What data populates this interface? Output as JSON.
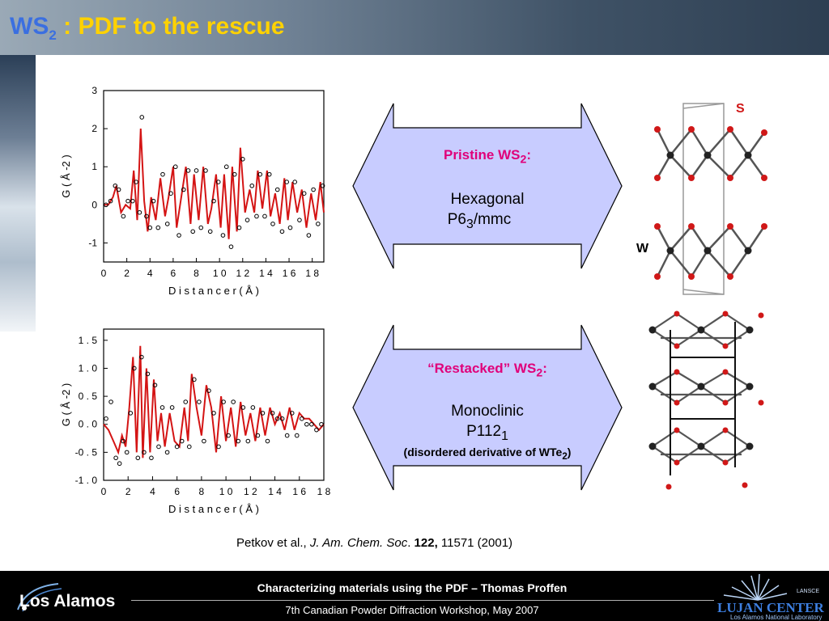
{
  "header": {
    "title_ws": "WS",
    "title_ws_sub": "2",
    "title_rest": " : PDF to the rescue"
  },
  "box_pristine": {
    "heading": "Pristine WS",
    "heading_sub": "2",
    "heading_suffix": ":",
    "line1": "Hexagonal",
    "line2_pre": "P6",
    "line2_sub": "3",
    "line2_post": "/mmc"
  },
  "box_restacked": {
    "heading": "“Restacked” WS",
    "heading_sub": "2",
    "heading_suffix": ":",
    "line1": "Monoclinic",
    "line2_pre": "P112",
    "line2_sub": "1",
    "note_pre": "(disordered derivative of WTe",
    "note_sub": "2",
    "note_post": ")"
  },
  "crystal_labels": {
    "s": "S",
    "w": "W"
  },
  "citation": {
    "authors": "Petkov et al., ",
    "journal": "J. Am. Chem. Soc",
    "dot": ". ",
    "volume": "122,",
    "rest": " 11571 (2001)"
  },
  "footer": {
    "line1": "Characterizing materials using the PDF – Thomas Proffen",
    "line2": "7th Canadian Powder Diffraction Workshop, May 2007",
    "left_logo_text": "Los Alamos",
    "right_logo_main": "LUJAN CENTER",
    "right_logo_sub": "Los Alamos National Laboratory",
    "right_logo_tag": "LANSCE"
  },
  "colors": {
    "fit_line": "#d41414",
    "data_points": "#000000",
    "arrow_fill": "#c8ccff",
    "heading_pink": "#e0007a",
    "title_yellow": "#ffd200",
    "title_blue": "#3b6fe0"
  },
  "chart_data": [
    {
      "type": "line",
      "xlabel": "D i s t a n c e   r ( Å )",
      "ylabel": "G   ( Å -2 )",
      "xlim": [
        0,
        19
      ],
      "ylim": [
        -1.5,
        3
      ],
      "xticks": [
        "0",
        "2",
        "4",
        "6",
        "8",
        "1 0",
        "1 2",
        "1 4",
        "1 6",
        "1 8"
      ],
      "yticks": [
        "-1",
        "0",
        "1",
        "2",
        "3"
      ],
      "xtick_values": [
        0,
        2,
        4,
        6,
        8,
        10,
        12,
        14,
        16,
        18
      ],
      "ytick_values": [
        -1,
        0,
        1,
        2,
        3
      ],
      "series": [
        {
          "style": "line",
          "x": [
            0,
            0.4,
            0.8,
            1.1,
            1.5,
            1.9,
            2.3,
            2.6,
            2.9,
            3.2,
            3.5,
            3.8,
            4.1,
            4.5,
            4.9,
            5.3,
            5.6,
            6.0,
            6.3,
            6.7,
            7.1,
            7.5,
            7.8,
            8.2,
            8.6,
            9.0,
            9.3,
            9.7,
            10.1,
            10.4,
            10.8,
            11.1,
            11.5,
            11.8,
            12.2,
            12.6,
            13.0,
            13.3,
            13.7,
            14.1,
            14.4,
            14.8,
            15.2,
            15.6,
            15.9,
            16.3,
            16.7,
            17.1,
            17.5,
            17.9,
            18.3,
            18.7,
            19.0
          ],
          "y": [
            0,
            0,
            0.2,
            0.5,
            -0.2,
            0,
            -0.1,
            0.9,
            -0.4,
            2.0,
            0.1,
            -0.7,
            0.2,
            -0.4,
            0.7,
            -0.3,
            0.2,
            1.0,
            -0.6,
            0.2,
            1.0,
            -0.5,
            0.8,
            -0.4,
            1.0,
            -0.5,
            -0.1,
            0.8,
            -0.6,
            0.8,
            -0.9,
            1.0,
            -0.7,
            1.5,
            -0.2,
            0.4,
            -0.2,
            0.9,
            -0.1,
            0.9,
            -0.3,
            0.3,
            -0.5,
            0.7,
            -0.4,
            0.6,
            -0.2,
            0.4,
            -0.6,
            0.3,
            -0.4,
            0.6,
            -0.2
          ]
        },
        {
          "style": "points",
          "x": [
            0.2,
            0.6,
            1.0,
            1.3,
            1.7,
            2.1,
            2.5,
            2.8,
            3.1,
            3.3,
            3.7,
            4.0,
            4.3,
            4.7,
            5.1,
            5.5,
            5.8,
            6.2,
            6.5,
            6.9,
            7.3,
            7.7,
            8.0,
            8.4,
            8.8,
            9.2,
            9.5,
            9.9,
            10.3,
            10.6,
            11.0,
            11.3,
            11.7,
            12.0,
            12.4,
            12.8,
            13.2,
            13.5,
            13.9,
            14.3,
            14.6,
            15.0,
            15.4,
            15.8,
            16.1,
            16.5,
            16.9,
            17.3,
            17.7,
            18.1,
            18.5,
            18.9
          ],
          "y": [
            0,
            0.1,
            0.5,
            0.4,
            -0.3,
            0.1,
            0.1,
            0.6,
            -0.2,
            2.3,
            -0.3,
            -0.6,
            0.1,
            -0.6,
            0.8,
            -0.5,
            0.3,
            1.0,
            -0.8,
            0.4,
            0.9,
            -0.7,
            0.9,
            -0.6,
            0.9,
            -0.7,
            0.1,
            0.6,
            -0.8,
            1.0,
            -1.1,
            0.8,
            -0.6,
            1.2,
            -0.4,
            0.5,
            -0.3,
            0.8,
            -0.3,
            0.8,
            -0.5,
            0.4,
            -0.7,
            0.6,
            -0.6,
            0.6,
            -0.4,
            0.3,
            -0.8,
            0.4,
            -0.5,
            0.5
          ]
        }
      ]
    },
    {
      "type": "line",
      "xlabel": "D i s t a n c e   r ( Å )",
      "ylabel": "G   ( Å -2 )",
      "xlim": [
        0,
        18
      ],
      "ylim": [
        -1.0,
        1.7
      ],
      "xticks": [
        "0",
        "2",
        "4",
        "6",
        "8",
        "1 0",
        "1 2",
        "1 4",
        "1 6",
        "1 8"
      ],
      "yticks": [
        "-1 . 0",
        "-0 . 5",
        "0 . 0",
        "0 . 5",
        "1 . 0",
        "1 . 5"
      ],
      "xtick_values": [
        0,
        2,
        4,
        6,
        8,
        10,
        12,
        14,
        16,
        18
      ],
      "ytick_values": [
        -1.0,
        -0.5,
        0,
        0.5,
        1.0,
        1.5
      ],
      "series": [
        {
          "style": "line",
          "x": [
            0,
            0.4,
            0.8,
            1.2,
            1.5,
            1.8,
            2.1,
            2.4,
            2.7,
            3.0,
            3.2,
            3.5,
            3.8,
            4.1,
            4.4,
            4.7,
            5.0,
            5.4,
            5.8,
            6.2,
            6.6,
            6.9,
            7.2,
            7.6,
            8.0,
            8.4,
            8.8,
            9.2,
            9.6,
            10.0,
            10.4,
            10.8,
            11.2,
            11.6,
            12.0,
            12.4,
            12.8,
            13.2,
            13.6,
            14.0,
            14.4,
            14.8,
            15.2,
            15.6,
            16.0,
            16.4,
            16.8,
            17.2,
            17.6,
            18.0
          ],
          "y": [
            0,
            -0.1,
            -0.3,
            -0.5,
            -0.2,
            -0.4,
            0.3,
            1.2,
            -0.5,
            1.4,
            -0.6,
            1.0,
            -0.5,
            0.8,
            -0.3,
            0.2,
            -0.4,
            0.2,
            -0.3,
            -0.4,
            0.3,
            -0.3,
            0.9,
            0.3,
            -0.2,
            0.7,
            0.3,
            -0.5,
            0.5,
            -0.3,
            0.3,
            -0.4,
            0.4,
            -0.2,
            0.2,
            -0.3,
            0.3,
            -0.2,
            0.3,
            0.0,
            0.2,
            -0.1,
            0.3,
            -0.1,
            0.2,
            0.1,
            0.1,
            0.0,
            -0.1,
            0.0
          ]
        },
        {
          "style": "points",
          "x": [
            0.2,
            0.6,
            1.0,
            1.3,
            1.6,
            1.9,
            2.2,
            2.5,
            2.8,
            3.1,
            3.3,
            3.6,
            3.9,
            4.2,
            4.5,
            4.8,
            5.2,
            5.6,
            6.0,
            6.4,
            6.7,
            7.0,
            7.4,
            7.8,
            8.2,
            8.6,
            9.0,
            9.4,
            9.8,
            10.2,
            10.6,
            11.0,
            11.4,
            11.8,
            12.2,
            12.6,
            13.0,
            13.4,
            13.8,
            14.2,
            14.6,
            15.0,
            15.4,
            15.8,
            16.2,
            16.6,
            17.0,
            17.4,
            17.8
          ],
          "y": [
            0.1,
            0.4,
            -0.6,
            -0.7,
            -0.3,
            -0.5,
            0.2,
            1.0,
            -0.6,
            1.2,
            -0.5,
            0.9,
            -0.6,
            0.7,
            -0.4,
            0.3,
            -0.5,
            0.3,
            -0.4,
            -0.3,
            0.4,
            -0.4,
            0.8,
            0.4,
            -0.3,
            0.6,
            0.2,
            -0.4,
            0.4,
            -0.2,
            0.4,
            -0.3,
            0.3,
            -0.3,
            0.3,
            -0.2,
            0.2,
            -0.3,
            0.2,
            0.1,
            0.1,
            -0.2,
            0.2,
            -0.2,
            0.1,
            0.0,
            0.0,
            -0.1,
            0.0
          ]
        }
      ]
    }
  ]
}
